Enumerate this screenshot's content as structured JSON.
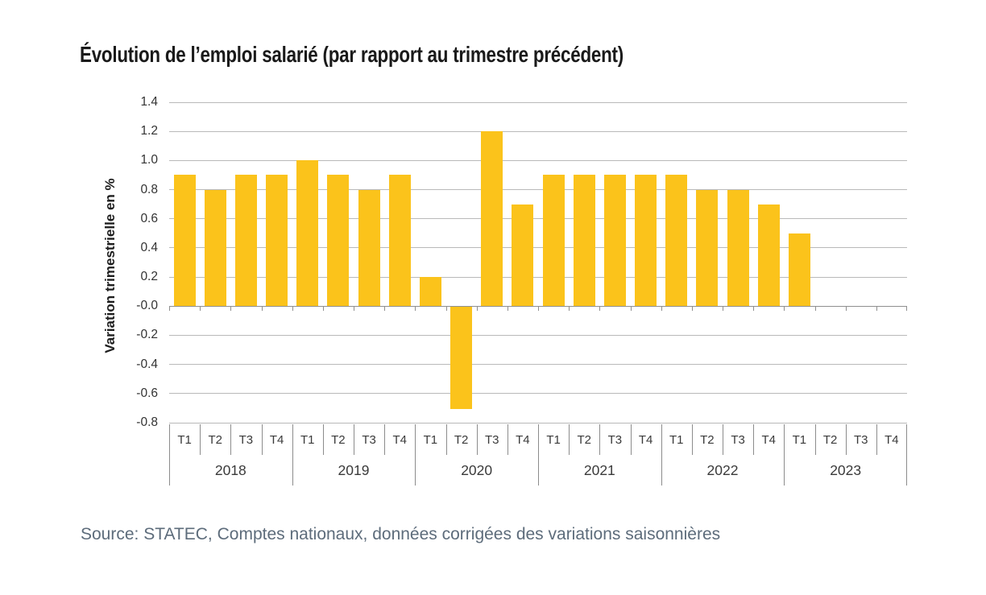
{
  "page": {
    "title": "Évolution de l’emploi salarié (par rapport au trimestre précédent)",
    "source": "Source: STATEC, Comptes nationaux, données corrigées des variations saisonnières"
  },
  "chart_data": {
    "type": "bar",
    "title": "Évolution de l’emploi salarié (par rapport au trimestre précédent)",
    "xlabel": "",
    "ylabel": "Variation trimestrielle en %",
    "ylim": [
      -0.8,
      1.4
    ],
    "ytick_step": 0.2,
    "grid": true,
    "legend": "none",
    "bar_color": "#FBC31B",
    "quarter_labels": [
      "T1",
      "T2",
      "T3",
      "T4"
    ],
    "years": [
      {
        "label": "2018",
        "values": [
          0.9,
          0.8,
          0.9,
          0.9
        ]
      },
      {
        "label": "2019",
        "values": [
          1.0,
          0.9,
          0.8,
          0.9
        ]
      },
      {
        "label": "2020",
        "values": [
          0.2,
          -0.7,
          1.2,
          0.7
        ]
      },
      {
        "label": "2021",
        "values": [
          0.9,
          0.9,
          0.9,
          0.9
        ]
      },
      {
        "label": "2022",
        "values": [
          0.9,
          0.8,
          0.8,
          0.7
        ]
      },
      {
        "label": "2023",
        "values": [
          0.5,
          null,
          null,
          null
        ]
      }
    ]
  }
}
